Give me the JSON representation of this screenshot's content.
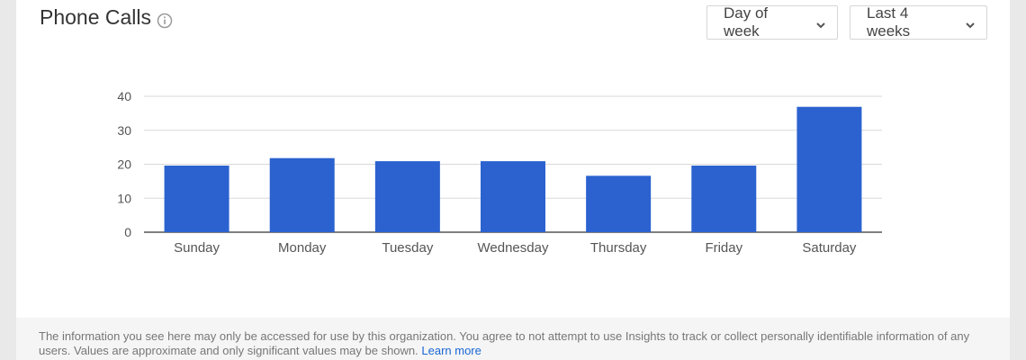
{
  "header": {
    "title": "Phone Calls",
    "group_by": "Day of week",
    "date_range": "Last 4 weeks"
  },
  "icons": {
    "info": "info-circle-icon",
    "dropdown_chevron": "chevron-down-icon"
  },
  "colors": {
    "bar": "#2b62cf",
    "accent_link": "#1a66d6"
  },
  "chart_data": {
    "type": "bar",
    "categories": [
      "Sunday",
      "Monday",
      "Tuesday",
      "Wednesday",
      "Thursday",
      "Friday",
      "Saturday"
    ],
    "values": [
      19.6,
      21.8,
      20.9,
      20.9,
      16.6,
      19.6,
      36.9
    ],
    "yticks": [
      0,
      10,
      20,
      30,
      40
    ],
    "ylim": [
      0,
      40
    ],
    "grid": true,
    "title": "",
    "xlabel": "",
    "ylabel": ""
  },
  "footer": {
    "notice": "The information you see here may only be accessed for use by this organization. You agree to not attempt to use Insights to track or collect personally identifiable information of any users. Values are approximate and only significant values may be shown.",
    "link": "Learn more"
  }
}
